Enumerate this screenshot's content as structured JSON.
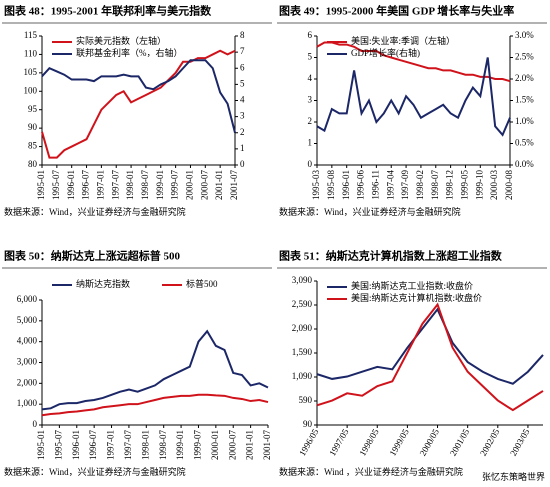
{
  "chart_data": [
    {
      "type": "line",
      "title": "图表 48：1995-2001 年联邦利率与美元指数",
      "source": "数据来源：Wind，兴业证券经济与金融研究院",
      "legend": "upper left",
      "categories": [
        "1995-01",
        null,
        "1995-07",
        null,
        "1996-01",
        null,
        "1996-07",
        null,
        "1997-01",
        null,
        "1997-07",
        null,
        "1998-01",
        null,
        "1998-07",
        null,
        "1999-01",
        null,
        "1999-07",
        null,
        "2000-01",
        null,
        "2000-07",
        null,
        "2001-01",
        null,
        "2001-07"
      ],
      "ylim": [
        80,
        115
      ],
      "yticks": [
        80,
        85,
        90,
        95,
        100,
        105,
        110,
        115
      ],
      "y2lim": [
        0,
        8
      ],
      "y2ticks": [
        0,
        1,
        2,
        3,
        4,
        5,
        6,
        7,
        8
      ],
      "series": [
        {
          "name": "实际美元指数（左轴）",
          "color": "#d0121b",
          "values": [
            89,
            82,
            82,
            84,
            85,
            86,
            87,
            91,
            95,
            97,
            99,
            100,
            97,
            98,
            99,
            100,
            101,
            103,
            105,
            108,
            108,
            109,
            109,
            110,
            111,
            110,
            111
          ]
        },
        {
          "name": "联邦基金利率（%，右轴）",
          "color": "#1c2767",
          "axis": "y2",
          "values": [
            5.5,
            6.0,
            5.8,
            5.6,
            5.3,
            5.3,
            5.3,
            5.2,
            5.5,
            5.5,
            5.5,
            5.6,
            5.5,
            5.5,
            4.8,
            4.7,
            5.0,
            5.2,
            5.5,
            6.0,
            6.5,
            6.5,
            6.5,
            6.0,
            4.5,
            3.8,
            2.0
          ]
        }
      ]
    },
    {
      "type": "line",
      "title": "图表 49：1995-2000 年美国 GDP 增长率与失业率",
      "source": "数据来源：Wind，兴业证券经济与金融研究院",
      "legend": "upper left",
      "categories": [
        "1995-03",
        null,
        "1995-08",
        null,
        "1996-01",
        null,
        "1996-06",
        null,
        "1996-11",
        null,
        "1997-04",
        null,
        "1997-09",
        null,
        "1998-02",
        null,
        "1998-07",
        null,
        "1998-12",
        null,
        "1999-05",
        null,
        "1999-10",
        null,
        "2000-03",
        null,
        "2000-08"
      ],
      "ylim": [
        0,
        6
      ],
      "yticks": [
        0,
        1,
        2,
        3,
        4,
        5,
        6
      ],
      "y2lim": [
        0,
        3
      ],
      "y2ticks": [
        {
          "value": 0,
          "label": "0.0%"
        },
        {
          "value": 0.5,
          "label": "0.5%"
        },
        {
          "value": 1,
          "label": "1.0%"
        },
        {
          "value": 1.5,
          "label": "1.5%"
        },
        {
          "value": 2,
          "label": "2.0%"
        },
        {
          "value": 2.5,
          "label": "2.5%"
        },
        {
          "value": 3,
          "label": "3.0%"
        }
      ],
      "series": [
        {
          "name": "美国:失业率:季调（左轴）",
          "color": "#d0121b",
          "values": [
            5.5,
            5.7,
            5.7,
            5.6,
            5.6,
            5.5,
            5.3,
            5.3,
            5.3,
            5.1,
            5.0,
            4.9,
            4.8,
            4.7,
            4.6,
            4.5,
            4.5,
            4.4,
            4.4,
            4.3,
            4.2,
            4.2,
            4.1,
            4.1,
            4.0,
            4.0,
            3.9
          ]
        },
        {
          "name": "GDP增长率(右轴)",
          "color": "#1c2767",
          "axis": "y2",
          "values": [
            0.9,
            0.8,
            1.3,
            1.2,
            1.2,
            2.2,
            1.2,
            1.5,
            1.0,
            1.2,
            1.5,
            1.2,
            1.6,
            1.4,
            1.1,
            1.2,
            1.3,
            1.4,
            1.2,
            1.1,
            1.5,
            1.8,
            1.6,
            2.5,
            0.9,
            0.7,
            1.1
          ]
        }
      ]
    },
    {
      "type": "line",
      "title": "图表 50：纳斯达克上涨远超标普 500",
      "source": "数据来源：Wind，兴业证券经济与金融研究院",
      "legend": "top",
      "categories": [
        "1995-01",
        null,
        "1995-07",
        null,
        "1996-01",
        null,
        "1996-07",
        null,
        "1997-01",
        null,
        "1997-07",
        null,
        "1998-01",
        null,
        "1998-07",
        null,
        "1999-01",
        null,
        "1999-07",
        null,
        "2000-01",
        null,
        "2000-07",
        null,
        "2001-01",
        null,
        "2001-07"
      ],
      "ylim": [
        0,
        6000
      ],
      "yticks": [
        0,
        {
          "value": 1000,
          "label": "1,000"
        },
        {
          "value": 2000,
          "label": "2,000"
        },
        {
          "value": 3000,
          "label": "3,000"
        },
        {
          "value": 4000,
          "label": "4,000"
        },
        {
          "value": 5000,
          "label": "5,000"
        },
        {
          "value": 6000,
          "label": "6,000"
        }
      ],
      "series": [
        {
          "name": "纳斯达克指数",
          "color": "#1c2767",
          "values": [
            750,
            800,
            1000,
            1050,
            1050,
            1150,
            1200,
            1300,
            1450,
            1600,
            1700,
            1600,
            1750,
            1900,
            2200,
            2400,
            2600,
            2800,
            4000,
            4500,
            3800,
            3600,
            2500,
            2400,
            1900,
            2000,
            1800
          ]
        },
        {
          "name": "标普500",
          "color": "#d0121b",
          "values": [
            470,
            530,
            560,
            620,
            650,
            700,
            750,
            850,
            900,
            950,
            1000,
            1000,
            1100,
            1200,
            1300,
            1350,
            1400,
            1400,
            1450,
            1450,
            1420,
            1400,
            1300,
            1250,
            1150,
            1200,
            1100
          ]
        }
      ]
    },
    {
      "type": "line",
      "title": "图表 51：纳斯达克计算机指数上涨超工业指数",
      "source": "数据来源：Wind ，兴业证券经济与金融研究院",
      "legend": "upper left",
      "categories": [
        "1996/05",
        null,
        "1997/05",
        null,
        "1998/05",
        null,
        "1999/05",
        null,
        "2000/05",
        null,
        "2001/05",
        null,
        "2002/05",
        null,
        "2003/05",
        null
      ],
      "ylim": [
        90,
        3090
      ],
      "yticks": [
        90,
        590,
        {
          "value": 1090,
          "label": "1,090"
        },
        {
          "value": 1590,
          "label": "1,590"
        },
        {
          "value": 2090,
          "label": "2,090"
        },
        {
          "value": 2590,
          "label": "2,590"
        },
        {
          "value": 3090,
          "label": "3,090"
        }
      ],
      "series": [
        {
          "name": "美国:纳斯达克工业指数:收盘价",
          "color": "#1c2767",
          "values": [
            1150,
            1050,
            1100,
            1200,
            1300,
            1250,
            1700,
            2100,
            2500,
            1800,
            1400,
            1200,
            1050,
            950,
            1200,
            1550
          ]
        },
        {
          "name": "美国:纳斯达克计算机指数:收盘价",
          "color": "#d0121b",
          "values": [
            500,
            600,
            750,
            700,
            900,
            1000,
            1600,
            2200,
            2600,
            1700,
            1200,
            900,
            600,
            400,
            600,
            800
          ]
        }
      ]
    }
  ],
  "watermark": "张忆东策略世界"
}
